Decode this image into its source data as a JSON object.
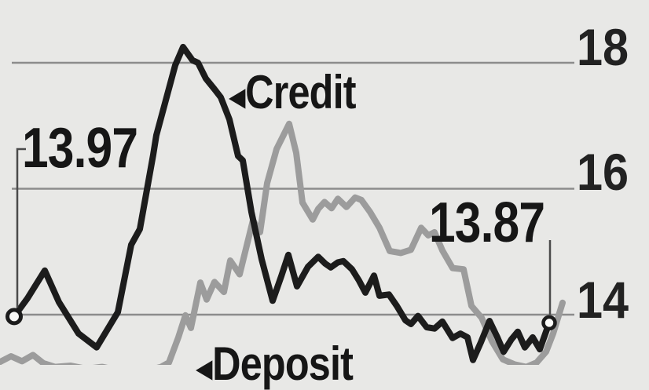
{
  "chart_data": {
    "type": "line",
    "title": "",
    "xlabel": "",
    "ylabel": "",
    "grid": true,
    "legend_position": "inline-annotations",
    "y_axis": {
      "ticks": [
        18,
        16,
        14
      ],
      "tick_labels": [
        "18",
        "16",
        "14"
      ],
      "side": "right",
      "ylim_shown": [
        13.1,
        18.4
      ]
    },
    "x_axis": {
      "ticks": [],
      "note": "no x labels visible; x stored as pixel offset 0-731 of plot area"
    },
    "series": [
      {
        "name": "Credit",
        "color": "#1c1c1c",
        "markers": "open-circle-ends",
        "start_value": 13.97,
        "end_value": 13.87,
        "points": [
          [
            18,
            13.97
          ],
          [
            35,
            14.26
          ],
          [
            57,
            14.7
          ],
          [
            75,
            14.2
          ],
          [
            100,
            13.7
          ],
          [
            123,
            13.48
          ],
          [
            150,
            14.04
          ],
          [
            167,
            15.11
          ],
          [
            178,
            15.36
          ],
          [
            195,
            16.54
          ],
          [
            199,
            16.85
          ],
          [
            223,
            17.96
          ],
          [
            233,
            18.25
          ],
          [
            245,
            18.04
          ],
          [
            252,
            18.0
          ],
          [
            262,
            17.75
          ],
          [
            273,
            17.58
          ],
          [
            281,
            17.45
          ],
          [
            292,
            17.1
          ],
          [
            303,
            16.52
          ],
          [
            309,
            16.45
          ],
          [
            320,
            15.63
          ],
          [
            333,
            14.88
          ],
          [
            347,
            14.22
          ],
          [
            358,
            14.61
          ],
          [
            367,
            14.95
          ],
          [
            378,
            14.45
          ],
          [
            392,
            14.76
          ],
          [
            405,
            14.92
          ],
          [
            414,
            14.81
          ],
          [
            421,
            14.75
          ],
          [
            430,
            14.83
          ],
          [
            437,
            14.85
          ],
          [
            448,
            14.72
          ],
          [
            457,
            14.54
          ],
          [
            465,
            14.35
          ],
          [
            476,
            14.62
          ],
          [
            483,
            14.3
          ],
          [
            495,
            14.32
          ],
          [
            505,
            14.14
          ],
          [
            516,
            13.91
          ],
          [
            523,
            13.85
          ],
          [
            532,
            13.98
          ],
          [
            543,
            13.8
          ],
          [
            553,
            13.78
          ],
          [
            563,
            13.89
          ],
          [
            576,
            13.63
          ],
          [
            586,
            13.7
          ],
          [
            595,
            13.64
          ],
          [
            602,
            13.28
          ],
          [
            612,
            13.56
          ],
          [
            623,
            13.9
          ],
          [
            633,
            13.64
          ],
          [
            641,
            13.41
          ],
          [
            651,
            13.61
          ],
          [
            659,
            13.73
          ],
          [
            668,
            13.48
          ],
          [
            678,
            13.64
          ],
          [
            687,
            13.45
          ],
          [
            699,
            13.87
          ]
        ]
      },
      {
        "name": "Deposit",
        "color": "#9c9c9c",
        "markers": "none",
        "points": [
          [
            0,
            13.25
          ],
          [
            14,
            13.34
          ],
          [
            28,
            13.26
          ],
          [
            42,
            13.36
          ],
          [
            55,
            13.23
          ],
          [
            70,
            13.17
          ],
          [
            90,
            13.19
          ],
          [
            110,
            13.14
          ],
          [
            130,
            13.17
          ],
          [
            150,
            13.12
          ],
          [
            170,
            13.14
          ],
          [
            190,
            13.12
          ],
          [
            205,
            13.17
          ],
          [
            215,
            13.24
          ],
          [
            227,
            13.64
          ],
          [
            236,
            13.99
          ],
          [
            243,
            13.79
          ],
          [
            255,
            14.51
          ],
          [
            263,
            14.24
          ],
          [
            273,
            14.52
          ],
          [
            285,
            14.36
          ],
          [
            293,
            14.86
          ],
          [
            305,
            14.64
          ],
          [
            322,
            15.5
          ],
          [
            331,
            15.31
          ],
          [
            340,
            16.09
          ],
          [
            352,
            16.63
          ],
          [
            368,
            17.03
          ],
          [
            377,
            16.57
          ],
          [
            385,
            15.78
          ],
          [
            398,
            15.51
          ],
          [
            405,
            15.68
          ],
          [
            413,
            15.79
          ],
          [
            422,
            15.69
          ],
          [
            430,
            15.84
          ],
          [
            441,
            15.71
          ],
          [
            452,
            15.86
          ],
          [
            460,
            15.82
          ],
          [
            471,
            15.63
          ],
          [
            483,
            15.38
          ],
          [
            496,
            15.01
          ],
          [
            510,
            14.98
          ],
          [
            523,
            15.03
          ],
          [
            536,
            15.38
          ],
          [
            545,
            15.26
          ],
          [
            553,
            15.31
          ],
          [
            563,
            15.02
          ],
          [
            576,
            14.74
          ],
          [
            590,
            14.72
          ],
          [
            600,
            14.14
          ],
          [
            613,
            13.95
          ],
          [
            626,
            13.58
          ],
          [
            640,
            13.29
          ],
          [
            655,
            13.21
          ],
          [
            670,
            13.17
          ],
          [
            683,
            13.24
          ],
          [
            695,
            13.41
          ],
          [
            704,
            13.7
          ],
          [
            716,
            14.19
          ]
        ]
      }
    ],
    "annotations": {
      "start_value_label": "13.97",
      "end_value_label": "13.87",
      "credit_label": "Credit",
      "deposit_label": "Deposit",
      "arrow_glyph": "◀"
    }
  },
  "colors": {
    "background": "#e8e8e6",
    "gridline": "#8c8c8c",
    "credit_line": "#1c1c1c",
    "deposit_line": "#9c9c9c",
    "callout_line": "#4a4a4a",
    "marker_fill": "#fbfbf9",
    "text": "#161616"
  }
}
